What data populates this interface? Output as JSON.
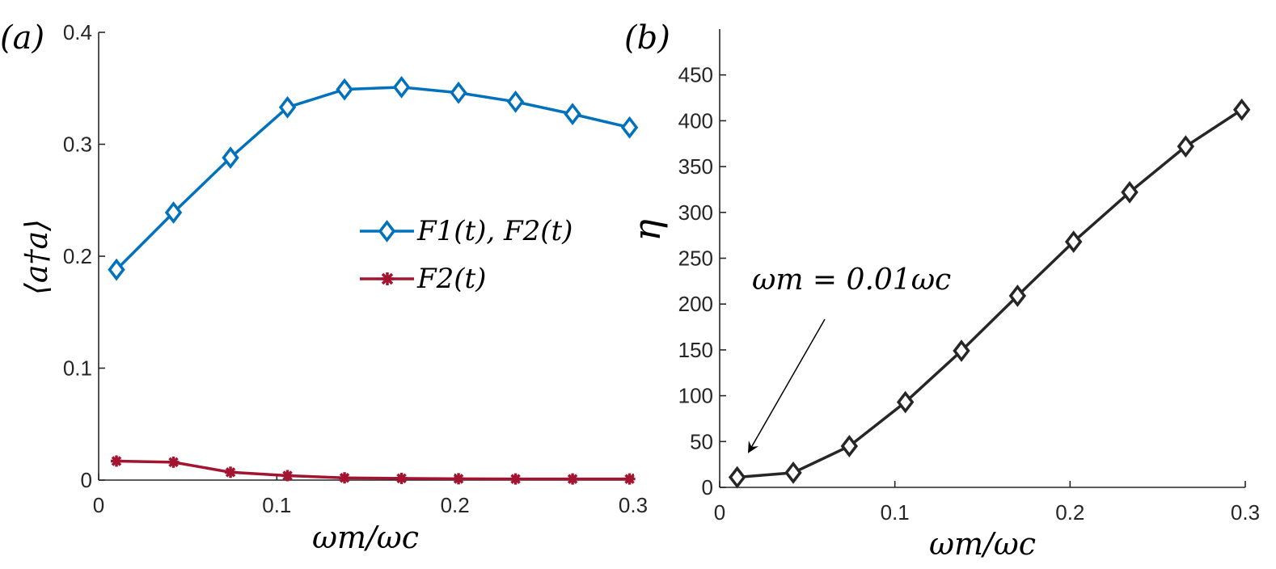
{
  "chart_data": [
    {
      "type": "line",
      "panel_label": "(a)",
      "xlabel": "ωm/ωc",
      "ylabel": "⟨a†a⟩",
      "xlim": [
        0,
        0.3
      ],
      "ylim": [
        0,
        0.4
      ],
      "xticks": [
        0,
        0.1,
        0.2,
        0.3
      ],
      "xtick_labels": [
        "0",
        "0.1",
        "0.2",
        "0.3"
      ],
      "yticks": [
        0,
        0.1,
        0.2,
        0.3,
        0.4
      ],
      "ytick_labels": [
        "0",
        "0.1",
        "0.2",
        "0.3",
        "0.4"
      ],
      "x": [
        0.01,
        0.042,
        0.074,
        0.106,
        0.138,
        0.17,
        0.202,
        0.234,
        0.266,
        0.298
      ],
      "series": [
        {
          "name": "F1(t), F2(t)",
          "marker": "diamond",
          "color": "#0072BD",
          "values": [
            0.188,
            0.239,
            0.288,
            0.333,
            0.349,
            0.351,
            0.346,
            0.338,
            0.327,
            0.315
          ]
        },
        {
          "name": "F2(t)",
          "marker": "asterisk",
          "color": "#A2142F",
          "values": [
            0.017,
            0.016,
            0.007,
            0.004,
            0.002,
            0.0015,
            0.0012,
            0.001,
            0.001,
            0.001
          ]
        }
      ],
      "legend": {
        "placement": "center-right",
        "entries": [
          "F1(t), F2(t)",
          "F2(t)"
        ]
      }
    },
    {
      "type": "line",
      "panel_label": "(b)",
      "xlabel": "ωm/ωc",
      "ylabel": "η",
      "xlim": [
        0,
        0.3
      ],
      "ylim": [
        0,
        500
      ],
      "xticks": [
        0,
        0.1,
        0.2,
        0.3
      ],
      "xtick_labels": [
        "0",
        "0.1",
        "0.2",
        "0.3"
      ],
      "yticks": [
        0,
        50,
        100,
        150,
        200,
        250,
        300,
        350,
        400,
        450
      ],
      "ytick_labels": [
        "0",
        "50",
        "100",
        "150",
        "200",
        "250",
        "300",
        "350",
        "400",
        "450"
      ],
      "x": [
        0.01,
        0.042,
        0.074,
        0.106,
        0.138,
        0.17,
        0.202,
        0.234,
        0.266,
        0.298
      ],
      "series": [
        {
          "name": "η",
          "marker": "diamond",
          "color": "#262626",
          "values": [
            11,
            16,
            45,
            93,
            149,
            209,
            268,
            322,
            372,
            412
          ]
        }
      ],
      "annotation": {
        "text": "ωm = 0.01ωc",
        "x": 0.01,
        "y": 11
      }
    }
  ]
}
